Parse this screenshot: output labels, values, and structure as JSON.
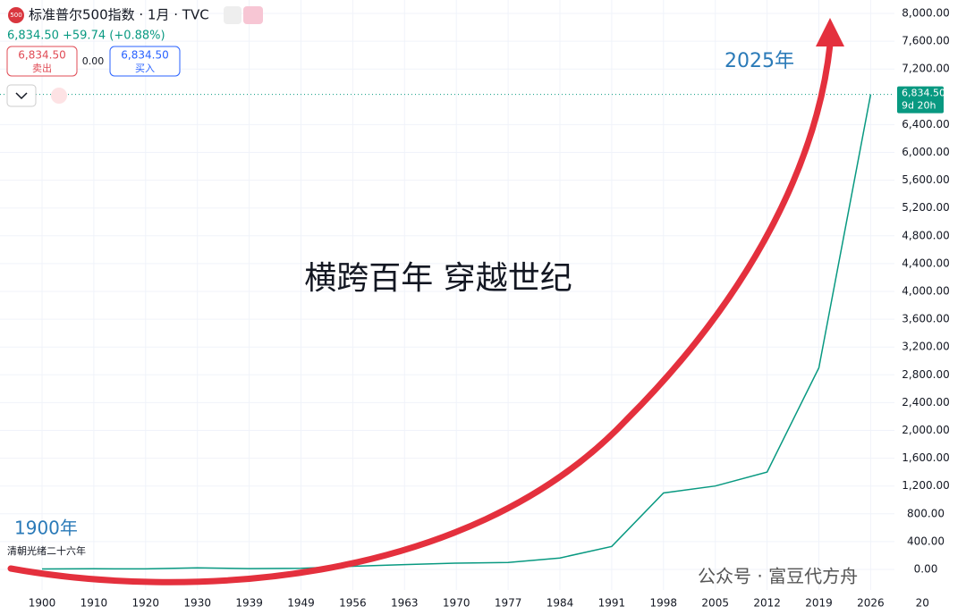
{
  "chart_data": {
    "type": "line",
    "title": "标准普尔500指数 · 1月 · TVC",
    "logo": "500",
    "price": "6,834.50",
    "change": "+59.74 (+0.88%)",
    "sell_price": "6,834.50",
    "sell_label": "卖出",
    "spread": "0.00",
    "buy_price": "6,834.50",
    "buy_label": "买入",
    "price_tag": "6,834.50",
    "countdown": "9d 20h",
    "annotations": [
      "2025年",
      "1900年",
      "清朝光绪二十六年",
      "横跨百年 穿越世纪"
    ],
    "watermark": "公众号 · 富豆代方舟",
    "categories": [
      "1900",
      "1910",
      "1920",
      "1930",
      "1939",
      "1949",
      "1956",
      "1963",
      "1970",
      "1977",
      "1984",
      "1991",
      "1998",
      "2005",
      "2012",
      "2019",
      "2026",
      "20"
    ],
    "series": [
      {
        "name": "标准普尔500指数",
        "color": "#089981",
        "values": [
          7,
          9,
          8,
          22,
          12,
          15,
          45,
          70,
          90,
          100,
          165,
          330,
          1100,
          1200,
          1400,
          2900,
          6834.5,
          null
        ]
      }
    ],
    "ylim": [
      0,
      8000
    ],
    "yticks": [
      {
        "value": 0,
        "label": "0.00"
      },
      {
        "value": 400,
        "label": "400.00"
      },
      {
        "value": 800,
        "label": "800.00"
      },
      {
        "value": 1200,
        "label": "1,200.00"
      },
      {
        "value": 1600,
        "label": "1,600.00"
      },
      {
        "value": 2000,
        "label": "2,000.00"
      },
      {
        "value": 2400,
        "label": "2,400.00"
      },
      {
        "value": 2800,
        "label": "2,800.00"
      },
      {
        "value": 3200,
        "label": "3,200.00"
      },
      {
        "value": 3600,
        "label": "3,600.00"
      },
      {
        "value": 4000,
        "label": "4,000.00"
      },
      {
        "value": 4400,
        "label": "4,400.00"
      },
      {
        "value": 4800,
        "label": "4,800.00"
      },
      {
        "value": 5200,
        "label": "5,200.00"
      },
      {
        "value": 5600,
        "label": "5,600.00"
      },
      {
        "value": 6000,
        "label": "6,000.00"
      },
      {
        "value": 6400,
        "label": "6,400.00"
      },
      {
        "value": 7200,
        "label": "7,200.00"
      },
      {
        "value": 7600,
        "label": "7,600.00"
      },
      {
        "value": 8000,
        "label": "8,000.00"
      }
    ],
    "last_value": 6834.5,
    "grid": true
  }
}
